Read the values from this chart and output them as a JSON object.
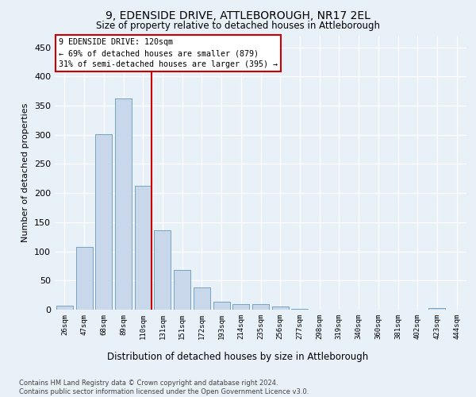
{
  "title": "9, EDENSIDE DRIVE, ATTLEBOROUGH, NR17 2EL",
  "subtitle": "Size of property relative to detached houses in Attleborough",
  "xlabel": "Distribution of detached houses by size in Attleborough",
  "ylabel": "Number of detached properties",
  "bar_color": "#c8d8ea",
  "bar_edge_color": "#6699bb",
  "categories": [
    "26sqm",
    "47sqm",
    "68sqm",
    "89sqm",
    "110sqm",
    "131sqm",
    "151sqm",
    "172sqm",
    "193sqm",
    "214sqm",
    "235sqm",
    "256sqm",
    "277sqm",
    "298sqm",
    "319sqm",
    "340sqm",
    "360sqm",
    "381sqm",
    "402sqm",
    "423sqm",
    "444sqm"
  ],
  "values": [
    7,
    108,
    301,
    362,
    212,
    136,
    68,
    38,
    13,
    10,
    9,
    6,
    2,
    0,
    0,
    0,
    0,
    0,
    0,
    3,
    0
  ],
  "vline_index": 4,
  "vline_color": "#cc0000",
  "annotation_line1": "9 EDENSIDE DRIVE: 120sqm",
  "annotation_line2": "← 69% of detached houses are smaller (879)",
  "annotation_line3": "31% of semi-detached houses are larger (395) →",
  "ylim": [
    0,
    470
  ],
  "yticks": [
    0,
    50,
    100,
    150,
    200,
    250,
    300,
    350,
    400,
    450
  ],
  "bg_color": "#e8f0f8",
  "footer_line1": "Contains HM Land Registry data © Crown copyright and database right 2024.",
  "footer_line2": "Contains public sector information licensed under the Open Government Licence v3.0."
}
